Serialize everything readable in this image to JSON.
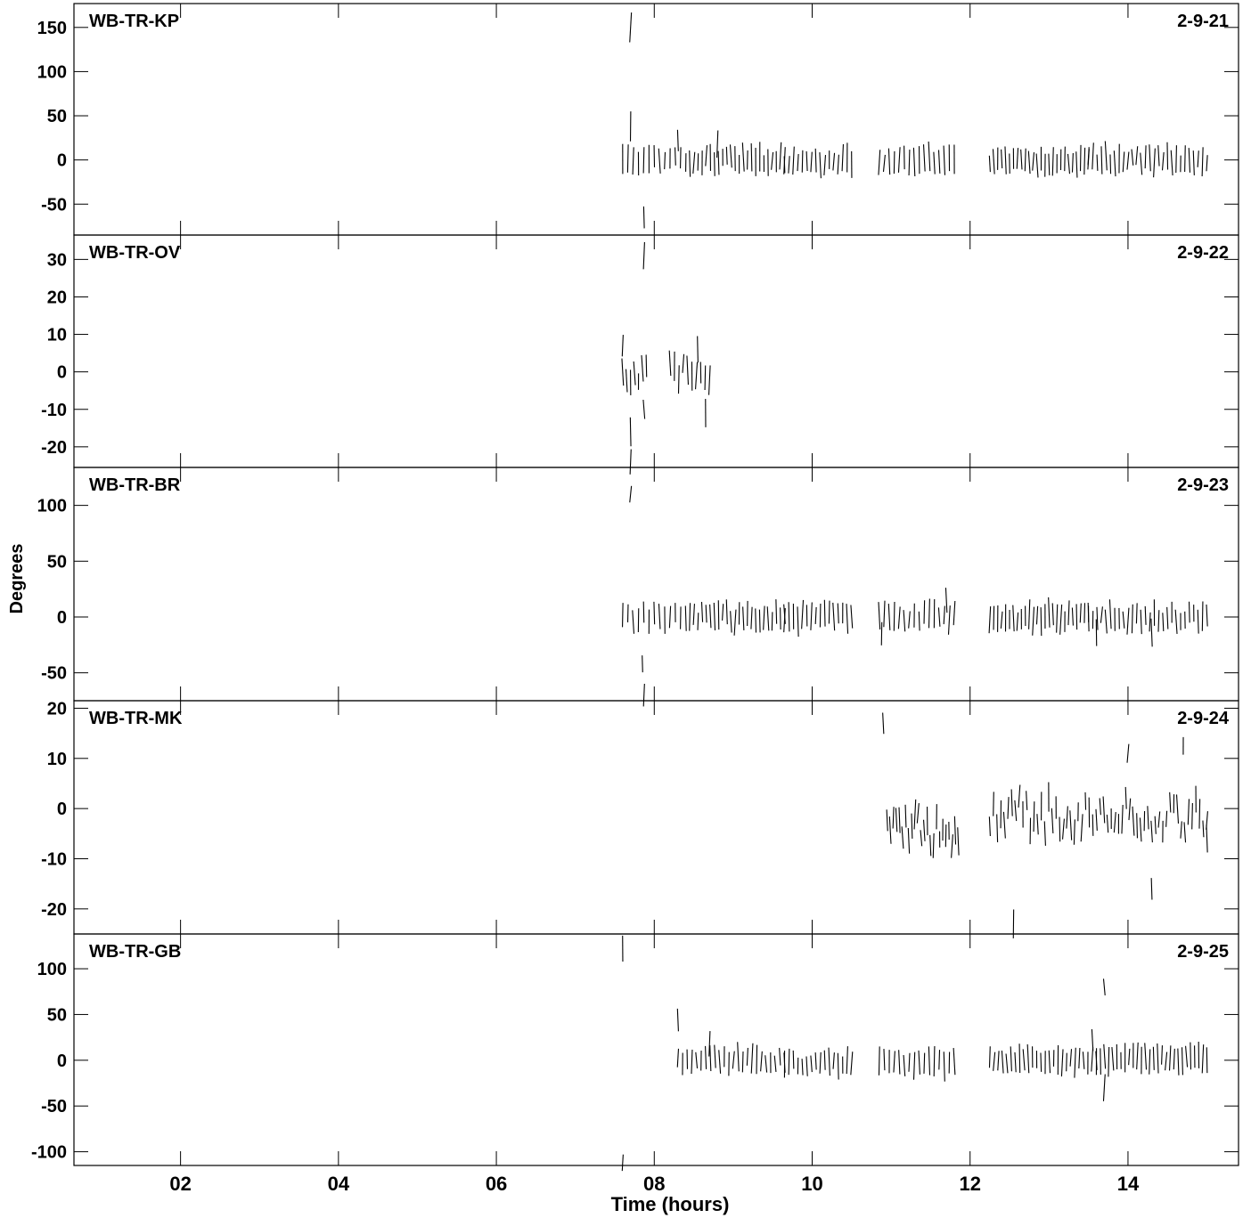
{
  "figure": {
    "ylabel": "Degrees",
    "xlabel": "Time (hours)",
    "x_range": [
      0.65,
      15.4
    ],
    "x_ticks": [
      2,
      4,
      6,
      8,
      10,
      12,
      14
    ],
    "x_tick_labels": [
      "02",
      "04",
      "06",
      "08",
      "10",
      "12",
      "14"
    ]
  },
  "chart_data": [
    {
      "type": "scatter",
      "label": "WB-TR-KP",
      "code": "2-9-21",
      "ylim": [
        -85,
        177
      ],
      "yticks": [
        150,
        100,
        50,
        0,
        -50
      ],
      "segments": [
        {
          "start": 7.6,
          "end": 8.4,
          "count": 13,
          "center": 0,
          "spread": 9
        },
        {
          "start": 8.45,
          "end": 9.65,
          "count": 24,
          "center": 0,
          "spread": 10
        },
        {
          "start": 9.65,
          "end": 10.5,
          "count": 16,
          "center": -2,
          "spread": 10
        },
        {
          "start": 10.85,
          "end": 11.8,
          "count": 16,
          "center": 0,
          "spread": 9
        },
        {
          "start": 12.25,
          "end": 13.5,
          "count": 26,
          "center": -2,
          "spread": 9
        },
        {
          "start": 13.5,
          "end": 15.0,
          "count": 28,
          "center": 0,
          "spread": 10
        }
      ],
      "outliers": [
        {
          "x": 7.7,
          "y": 150
        },
        {
          "x": 7.7,
          "y": 38
        },
        {
          "x": 7.87,
          "y": -65
        },
        {
          "x": 8.3,
          "y": 22
        },
        {
          "x": 8.8,
          "y": 18
        }
      ]
    },
    {
      "type": "scatter",
      "label": "WB-TR-OV",
      "code": "2-9-22",
      "ylim": [
        -25.5,
        36.5
      ],
      "yticks": [
        30,
        20,
        10,
        0,
        -10,
        -20
      ],
      "segments": [
        {
          "start": 7.6,
          "end": 7.9,
          "count": 7,
          "center": -1,
          "spread": 6
        },
        {
          "start": 8.2,
          "end": 8.7,
          "count": 10,
          "center": 0,
          "spread": 5
        }
      ],
      "outliers": [
        {
          "x": 7.6,
          "y": 7
        },
        {
          "x": 7.7,
          "y": -16
        },
        {
          "x": 7.7,
          "y": -24
        },
        {
          "x": 7.87,
          "y": 31
        },
        {
          "x": 7.87,
          "y": -10
        },
        {
          "x": 8.55,
          "y": 6
        },
        {
          "x": 8.65,
          "y": -11
        }
      ]
    },
    {
      "type": "scatter",
      "label": "WB-TR-BR",
      "code": "2-9-23",
      "ylim": [
        -75,
        134
      ],
      "yticks": [
        100,
        50,
        0,
        -50
      ],
      "segments": [
        {
          "start": 7.6,
          "end": 8.4,
          "count": 13,
          "center": 0,
          "spread": 9
        },
        {
          "start": 8.45,
          "end": 9.65,
          "count": 24,
          "center": 0,
          "spread": 10
        },
        {
          "start": 9.65,
          "end": 10.5,
          "count": 16,
          "center": 0,
          "spread": 10
        },
        {
          "start": 10.85,
          "end": 11.8,
          "count": 16,
          "center": 0,
          "spread": 9
        },
        {
          "start": 12.25,
          "end": 13.5,
          "count": 26,
          "center": 0,
          "spread": 9
        },
        {
          "start": 13.5,
          "end": 15.0,
          "count": 28,
          "center": 0,
          "spread": 9
        }
      ],
      "outliers": [
        {
          "x": 7.7,
          "y": 110
        },
        {
          "x": 7.85,
          "y": -42
        },
        {
          "x": 7.87,
          "y": -70
        },
        {
          "x": 10.88,
          "y": -15
        },
        {
          "x": 11.7,
          "y": 15
        },
        {
          "x": 13.6,
          "y": -14
        },
        {
          "x": 14.3,
          "y": -14
        }
      ]
    },
    {
      "type": "scatter",
      "label": "WB-TR-MK",
      "code": "2-9-24",
      "ylim": [
        -25,
        21.5
      ],
      "yticks": [
        20,
        10,
        0,
        -10,
        -20
      ],
      "segments": [
        {
          "start": 10.95,
          "end": 11.85,
          "count": 24,
          "center": -4,
          "spread": 7
        },
        {
          "start": 12.25,
          "end": 15.0,
          "count": 60,
          "center": -1,
          "spread": 8
        }
      ],
      "outliers": [
        {
          "x": 10.9,
          "y": 17
        },
        {
          "x": 12.55,
          "y": -23
        },
        {
          "x": 14.0,
          "y": 11
        },
        {
          "x": 14.3,
          "y": -16
        },
        {
          "x": 14.7,
          "y": 12.5
        },
        {
          "x": 15.0,
          "y": -6
        }
      ]
    },
    {
      "type": "scatter",
      "label": "WB-TR-GB",
      "code": "2-9-25",
      "ylim": [
        -115,
        138
      ],
      "yticks": [
        100,
        50,
        0,
        -50,
        -100
      ],
      "segments": [
        {
          "start": 8.3,
          "end": 9.65,
          "count": 24,
          "center": 0,
          "spread": 9
        },
        {
          "start": 9.65,
          "end": 10.5,
          "count": 16,
          "center": -3,
          "spread": 9
        },
        {
          "start": 10.85,
          "end": 11.8,
          "count": 16,
          "center": -3,
          "spread": 9
        },
        {
          "start": 12.25,
          "end": 13.6,
          "count": 26,
          "center": 0,
          "spread": 8
        },
        {
          "start": 13.6,
          "end": 15.0,
          "count": 28,
          "center": 2,
          "spread": 8
        }
      ],
      "outliers": [
        {
          "x": 7.6,
          "y": 122
        },
        {
          "x": 7.6,
          "y": -112
        },
        {
          "x": 8.3,
          "y": 44
        },
        {
          "x": 8.7,
          "y": 18
        },
        {
          "x": 13.55,
          "y": 22
        },
        {
          "x": 13.7,
          "y": 80
        },
        {
          "x": 13.7,
          "y": -30
        }
      ]
    }
  ]
}
